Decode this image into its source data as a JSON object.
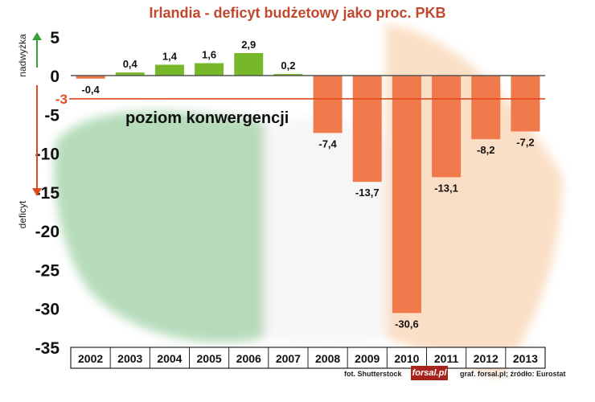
{
  "chart_data": {
    "type": "bar",
    "title": "Irlandia - deficyt budżetowy jako proc. PKB",
    "categories": [
      "2002",
      "2003",
      "2004",
      "2005",
      "2006",
      "2007",
      "2008",
      "2009",
      "2010",
      "2011",
      "2012",
      "2013"
    ],
    "values": [
      -0.4,
      0.4,
      1.4,
      1.6,
      2.9,
      0.2,
      -7.4,
      -13.7,
      -30.6,
      -13.1,
      -8.2,
      -7.2
    ],
    "value_labels": [
      "-0,4",
      "0,4",
      "1,4",
      "1,6",
      "2,9",
      "0,2",
      "-7,4",
      "-13,7",
      "-30,6",
      "-13,1",
      "-8,2",
      "-7,2"
    ],
    "ylim": [
      -35,
      5
    ],
    "yticks": [
      5,
      0,
      -5,
      -10,
      -15,
      -20,
      -25,
      -30,
      -35
    ],
    "ytick_labels": [
      "5",
      "0",
      "-5",
      "-10",
      "-15",
      "-20",
      "-25",
      "-30",
      "-35"
    ],
    "positive_label": "nadwyżka",
    "negative_label": "deficyt",
    "reference_line": {
      "value": -3,
      "label": "-3",
      "annotation": "poziom konwergencji"
    },
    "colors": {
      "positive": "#76b82a",
      "negative": "#f07a4c",
      "reference": "#e04a1f",
      "title": "#c0482d",
      "up_arrow": "#3aa03a",
      "down_arrow": "#e04a1f"
    }
  },
  "footer": {
    "photo_credit": "fot. Shutterstock",
    "brand": "forsal.pl",
    "source": "graf. forsal.pl; źródło: Eurostat"
  }
}
